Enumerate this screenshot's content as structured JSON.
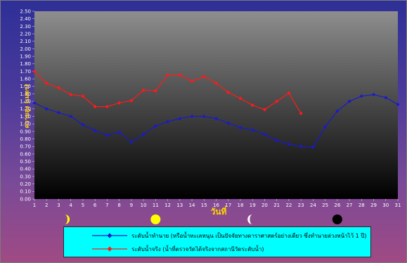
{
  "chart_data": {
    "type": "line",
    "xlabel": "วันที่",
    "ylabel": "ความสูง (เมตร)",
    "xlim": [
      1,
      31
    ],
    "ylim": [
      0,
      2.5
    ],
    "grid": false,
    "legend_position": "bottom",
    "x": [
      1,
      2,
      3,
      4,
      5,
      6,
      7,
      8,
      9,
      10,
      11,
      12,
      13,
      14,
      15,
      16,
      17,
      18,
      19,
      20,
      21,
      22,
      23,
      24,
      25,
      26,
      27,
      28,
      29,
      30,
      31
    ],
    "x_ticks": [
      "1",
      "2",
      "3",
      "4",
      "5",
      "6",
      "7",
      "8",
      "9",
      "10",
      "11",
      "12",
      "13",
      "14",
      "15",
      "16",
      "17",
      "18",
      "19",
      "20",
      "21",
      "22",
      "23",
      "24",
      "25",
      "26",
      "27",
      "28",
      "29",
      "30",
      "31"
    ],
    "y_ticks": [
      "0.00",
      "0.10",
      "0.20",
      "0.30",
      "0.40",
      "0.50",
      "0.60",
      "0.70",
      "0.80",
      "0.90",
      "1.00",
      "1.10",
      "1.20",
      "1.30",
      "1.40",
      "1.50",
      "1.60",
      "1.70",
      "1.80",
      "1.90",
      "2.00",
      "2.10",
      "2.20",
      "2.30",
      "2.40",
      "2.50"
    ],
    "series": [
      {
        "name": "ระดับน้ำทำนาย (หรือน้ำทะเลหนุน เป็นปัจจัยทางดาราศาสตร์อย่างเดียว ซึ่งทำนายล่วงหน้าไว้ 1 ปี)",
        "color": "#1a1acc",
        "marker": "diamond",
        "values": [
          1.28,
          1.2,
          1.15,
          1.1,
          0.99,
          0.91,
          0.85,
          0.89,
          0.76,
          0.86,
          0.97,
          1.03,
          1.07,
          1.1,
          1.1,
          1.07,
          1.01,
          0.95,
          0.92,
          0.86,
          0.78,
          0.73,
          0.7,
          0.69,
          0.96,
          1.17,
          1.3,
          1.37,
          1.39,
          1.35,
          1.26
        ]
      },
      {
        "name": "ระดับน้ำจริง (น้ำที่ตรวจวัดได้จริงจากสถานีวัดระดับน้ำ)",
        "color": "#ff1a1a",
        "marker": "diamond",
        "values": [
          1.7,
          1.54,
          1.48,
          1.39,
          1.37,
          1.23,
          1.23,
          1.28,
          1.31,
          1.45,
          1.44,
          1.65,
          1.65,
          1.57,
          1.63,
          1.54,
          1.42,
          1.34,
          1.25,
          1.19,
          1.3,
          1.41,
          1.14,
          null,
          null,
          null,
          null,
          null,
          null,
          null,
          null
        ]
      }
    ],
    "moon_phases": [
      {
        "day": 3.5,
        "phase": "first-quarter",
        "icon": "crescent-moon-icon"
      },
      {
        "day": 11,
        "phase": "full",
        "icon": "full-moon-icon"
      },
      {
        "day": 19,
        "phase": "last-quarter",
        "icon": "waning-moon-icon"
      },
      {
        "day": 26,
        "phase": "new",
        "icon": "new-moon-icon"
      }
    ],
    "colors": {
      "plot_top": "#8e8e8e",
      "plot_bottom": "#000000",
      "axis_text": "#ffffff",
      "label_text": "#ffd400",
      "legend_bg": "#00ffff",
      "moon_yellow": "#ffff00"
    }
  }
}
